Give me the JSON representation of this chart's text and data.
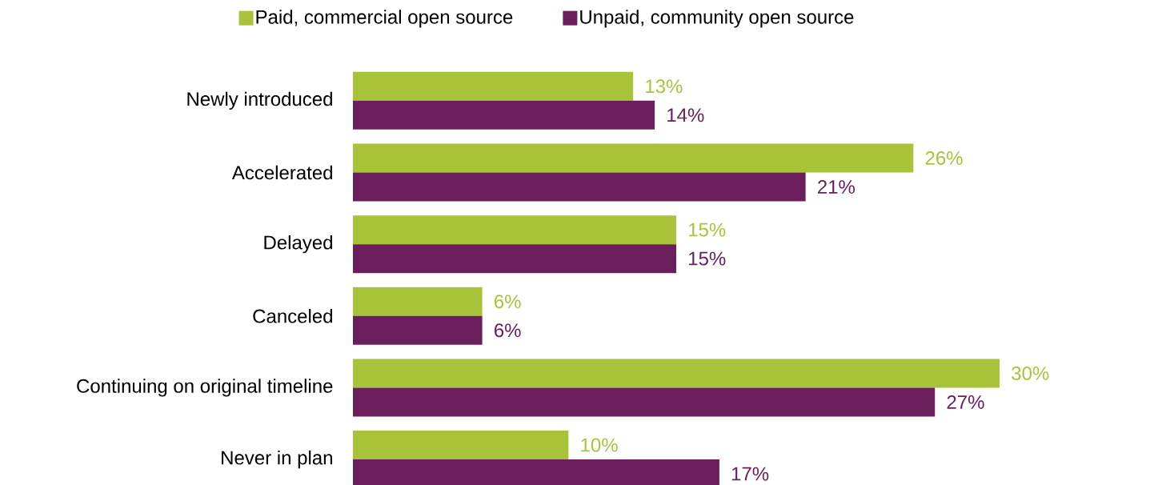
{
  "chart_data": {
    "type": "bar",
    "orientation": "horizontal",
    "categories": [
      "Newly introduced",
      "Accelerated",
      "Delayed",
      "Canceled",
      "Continuing on original timeline",
      "Never in plan"
    ],
    "series": [
      {
        "name": "Paid, commercial open source",
        "color": "#a8c23a",
        "values": [
          13,
          26,
          15,
          6,
          30,
          10
        ],
        "value_labels": [
          "13%",
          "26%",
          "15%",
          "6%",
          "30%",
          "10%"
        ]
      },
      {
        "name": "Unpaid, community open source",
        "color": "#6a1e5c",
        "values": [
          14,
          21,
          15,
          6,
          27,
          17
        ],
        "value_labels": [
          "14%",
          "21%",
          "15%",
          "6%",
          "27%",
          "17%"
        ]
      }
    ],
    "legend": "top"
  }
}
